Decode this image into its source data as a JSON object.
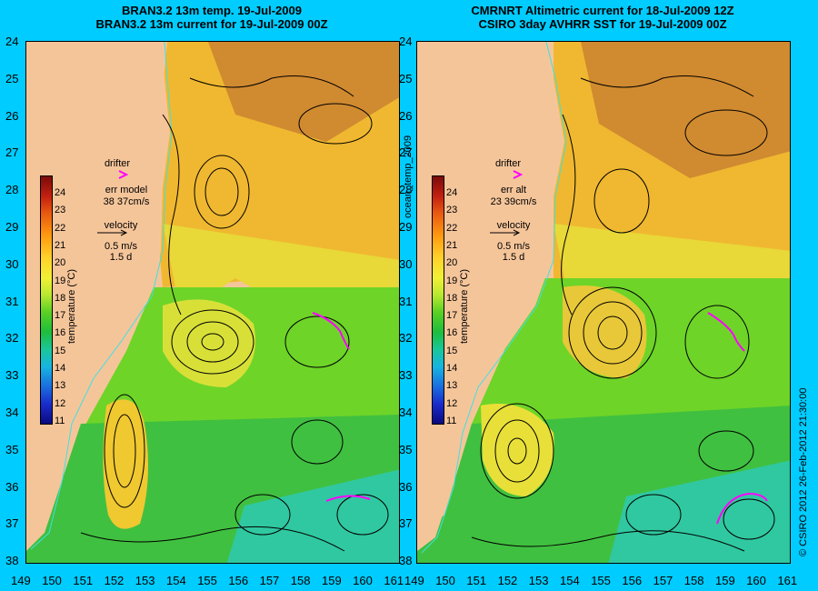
{
  "left_panel": {
    "title_line1": "BRAN3.2 13m temp. 19-Jul-2009",
    "title_line2": "BRAN3.2 13m current for 19-Jul-2009 00Z",
    "drifter_label": "drifter",
    "err_label": "err model",
    "err_value": "38 37cm/s",
    "velocity_label": "velocity",
    "velocity_scale": "0.5 m/s",
    "velocity_time": "1.5 d"
  },
  "right_panel": {
    "title_line1": "CMRNRT Altimetric current for 18-Jul-2009 12Z",
    "title_line2": "CSIRO 3day AVHRR SST for 19-Jul-2009 00Z",
    "drifter_label": "drifter",
    "err_label": "err alt",
    "err_value": "23 39cm/s",
    "velocity_label": "velocity",
    "velocity_scale": "0.5 m/s",
    "velocity_time": "1.5 d"
  },
  "center_label": "ocean_temp_2009",
  "credit_label": "© CSIRO 2012  26-Feb-2012 21:30:00",
  "colorbar": {
    "unit_label": "temperature (°C)",
    "ticks": [
      "24",
      "23",
      "22",
      "21",
      "20",
      "19",
      "18",
      "17",
      "16",
      "15",
      "14",
      "13",
      "12",
      "11"
    ]
  },
  "axes": {
    "lat_ticks": [
      "24",
      "25",
      "26",
      "27",
      "28",
      "29",
      "30",
      "31",
      "32",
      "33",
      "34",
      "35",
      "36",
      "37",
      "38"
    ],
    "lon_ticks": [
      "149",
      "150",
      "151",
      "152",
      "153",
      "154",
      "155",
      "156",
      "157",
      "158",
      "159",
      "160",
      "161"
    ]
  },
  "colors": {
    "background": "#00ccff",
    "land": "#f5c59a",
    "drifter": "#ff00ff",
    "coast_line": "#40e0e0"
  }
}
